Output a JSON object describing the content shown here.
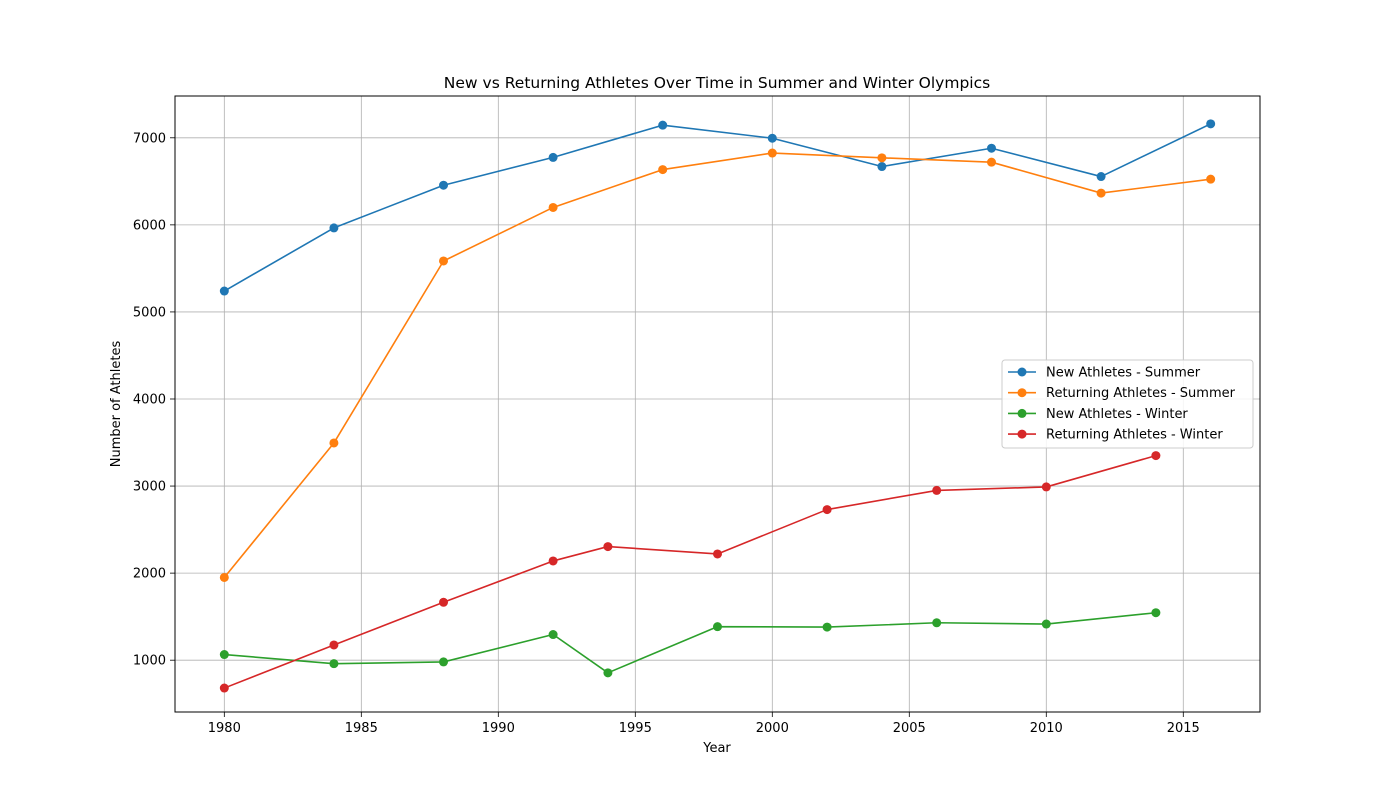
{
  "chart_data": {
    "type": "line",
    "title": "New vs Returning Athletes Over Time in Summer and Winter Olympics",
    "xlabel": "Year",
    "ylabel": "Number of Athletes",
    "xlim": [
      1978.2,
      2017.8
    ],
    "ylim": [
      405,
      7480
    ],
    "x_ticks": [
      1980,
      1985,
      1990,
      1995,
      2000,
      2005,
      2010,
      2015
    ],
    "y_ticks": [
      1000,
      2000,
      3000,
      4000,
      5000,
      6000,
      7000
    ],
    "grid": true,
    "legend_position": "center-right",
    "series": [
      {
        "name": "New Athletes - Summer",
        "color": "#1f77b4",
        "x": [
          1980,
          1984,
          1988,
          1992,
          1996,
          2000,
          2004,
          2008,
          2012,
          2016
        ],
        "y": [
          5240,
          5965,
          6455,
          6775,
          7145,
          6995,
          6670,
          6880,
          6555,
          7160
        ]
      },
      {
        "name": "Returning Athletes - Summer",
        "color": "#ff7f0e",
        "x": [
          1980,
          1984,
          1988,
          1992,
          1996,
          2000,
          2004,
          2008,
          2012,
          2016
        ],
        "y": [
          1950,
          3495,
          5585,
          6200,
          6635,
          6825,
          6770,
          6720,
          6365,
          6525
        ]
      },
      {
        "name": "New Athletes - Winter",
        "color": "#2ca02c",
        "x": [
          1980,
          1984,
          1988,
          1992,
          1994,
          1998,
          2002,
          2006,
          2010,
          2014
        ],
        "y": [
          1065,
          960,
          980,
          1295,
          855,
          1385,
          1380,
          1430,
          1415,
          1545
        ]
      },
      {
        "name": "Returning Athletes - Winter",
        "color": "#d62728",
        "x": [
          1980,
          1984,
          1988,
          1992,
          1994,
          1998,
          2002,
          2006,
          2010,
          2014
        ],
        "y": [
          680,
          1175,
          1665,
          2140,
          2305,
          2220,
          2730,
          2950,
          2990,
          3350
        ]
      }
    ]
  }
}
